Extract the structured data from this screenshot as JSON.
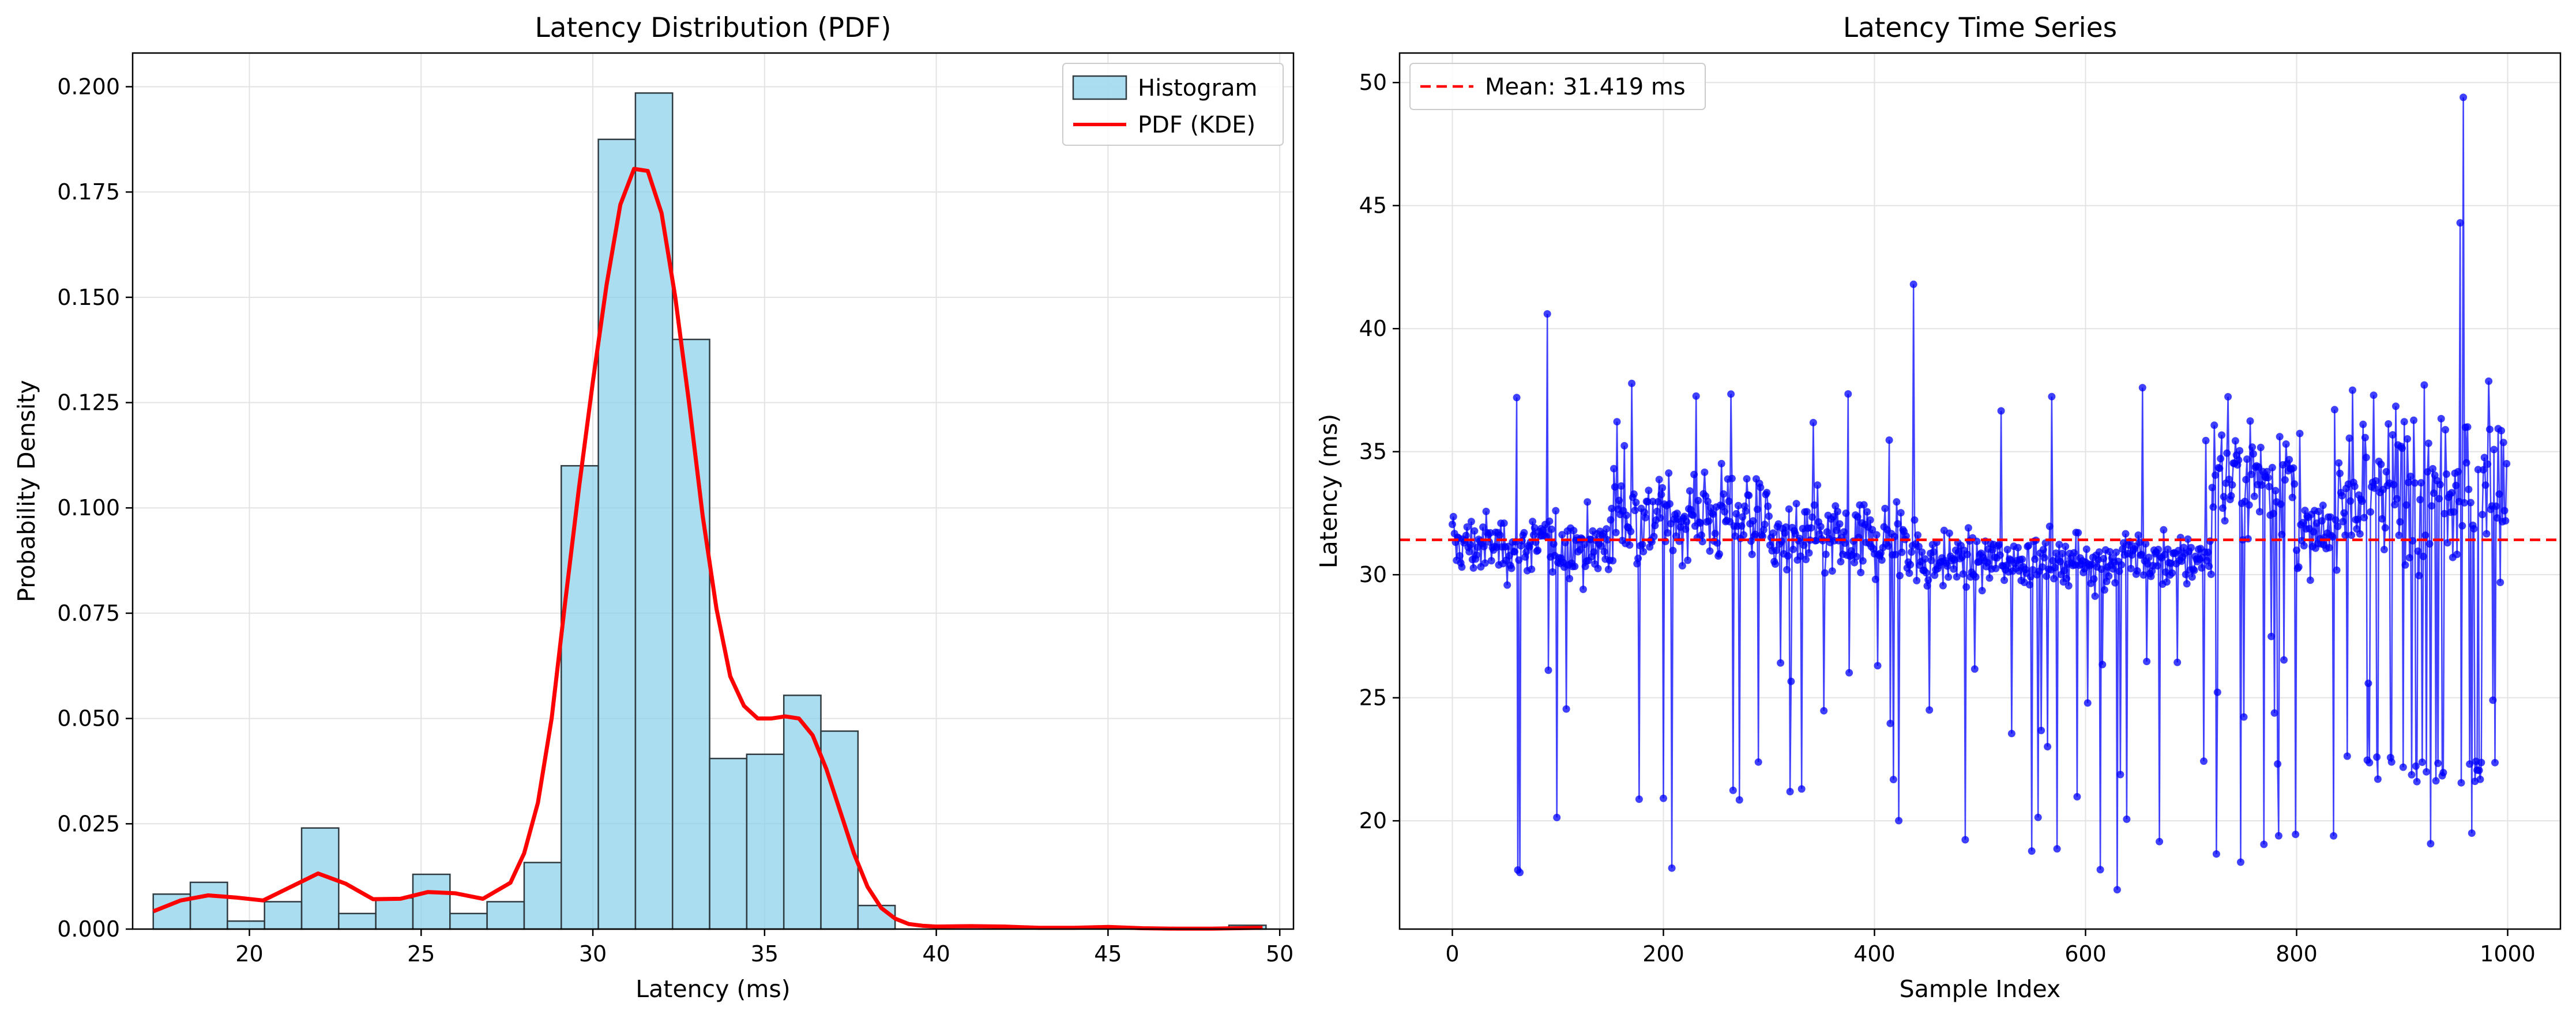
{
  "chart_data": [
    {
      "type": "bar",
      "title": "Latency Distribution (PDF)",
      "xlabel": "Latency (ms)",
      "ylabel": "Probability Density",
      "xlim": [
        16.6,
        50.4
      ],
      "ylim": [
        0,
        0.208
      ],
      "xticks": [
        20,
        25,
        30,
        35,
        40,
        45,
        50
      ],
      "yticks": [
        0.0,
        0.025,
        0.05,
        0.075,
        0.1,
        0.125,
        0.15,
        0.175,
        0.2
      ],
      "grid": true,
      "legend": {
        "position": "top-right",
        "entries": [
          "Histogram",
          "PDF (KDE)"
        ]
      },
      "histogram": {
        "name": "Histogram",
        "color": "#87CEEB",
        "edge_color": "#2f3b40",
        "bin_start": 17.2,
        "bin_width": 1.08,
        "values": [
          0.0083,
          0.0111,
          0.0019,
          0.0065,
          0.024,
          0.0037,
          0.0074,
          0.013,
          0.0037,
          0.0065,
          0.0158,
          0.11,
          0.1875,
          0.1985,
          0.14,
          0.0405,
          0.0415,
          0.0555,
          0.047,
          0.0056,
          0.0,
          0.0,
          0.0,
          0.0,
          0.0,
          0.0,
          0.0,
          0.0,
          0.0,
          0.0009
        ]
      },
      "kde": {
        "name": "PDF (KDE)",
        "color": "#ff0000",
        "x": [
          17.2,
          18.0,
          18.8,
          19.6,
          20.4,
          21.2,
          22.0,
          22.8,
          23.6,
          24.4,
          25.2,
          26.0,
          26.8,
          27.6,
          28.0,
          28.4,
          28.8,
          29.2,
          29.6,
          30.0,
          30.4,
          30.8,
          31.2,
          31.6,
          32.0,
          32.4,
          32.8,
          33.2,
          33.6,
          34.0,
          34.4,
          34.8,
          35.2,
          35.6,
          36.0,
          36.4,
          36.8,
          37.2,
          37.6,
          38.0,
          38.4,
          38.8,
          39.2,
          39.6,
          40.0,
          41.0,
          42.0,
          43.0,
          44.0,
          45.0,
          46.0,
          47.0,
          48.0,
          49.5
        ],
        "y": [
          0.0042,
          0.0068,
          0.008,
          0.0075,
          0.0068,
          0.01,
          0.0132,
          0.0108,
          0.0071,
          0.0072,
          0.0088,
          0.0085,
          0.0072,
          0.011,
          0.018,
          0.03,
          0.05,
          0.078,
          0.105,
          0.13,
          0.153,
          0.172,
          0.1805,
          0.18,
          0.17,
          0.15,
          0.125,
          0.098,
          0.076,
          0.06,
          0.053,
          0.05,
          0.05,
          0.0505,
          0.05,
          0.046,
          0.038,
          0.028,
          0.018,
          0.01,
          0.005,
          0.0025,
          0.0012,
          0.0008,
          0.0006,
          0.0007,
          0.0006,
          0.0003,
          0.0003,
          0.0005,
          0.0002,
          0.0001,
          0.0001,
          0.0003
        ]
      }
    },
    {
      "type": "line",
      "title": "Latency Time Series",
      "xlabel": "Sample Index",
      "ylabel": "Latency (ms)",
      "xlim": [
        -50,
        1050
      ],
      "ylim": [
        15.6,
        51.2
      ],
      "xticks": [
        0,
        200,
        400,
        600,
        800,
        1000
      ],
      "yticks": [
        20,
        25,
        30,
        35,
        40,
        45,
        50
      ],
      "grid": true,
      "legend": {
        "position": "top-left",
        "entries": [
          "Mean: 31.419 ms"
        ]
      },
      "series": [
        {
          "color": "#0000ff",
          "marker": "circle",
          "n_points": 1000
        }
      ],
      "mean_line": {
        "name": "Mean: 31.419 ms",
        "value": 31.419,
        "color": "#ff0000",
        "style": "dashed"
      },
      "notable_points": [
        {
          "x": 61,
          "y": 37.2
        },
        {
          "x": 62,
          "y": 18.0
        },
        {
          "x": 64,
          "y": 17.9
        },
        {
          "x": 90,
          "y": 40.6
        },
        {
          "x": 437,
          "y": 41.8
        },
        {
          "x": 630,
          "y": 17.2
        },
        {
          "x": 955,
          "y": 44.3
        },
        {
          "x": 958,
          "y": 49.4
        },
        {
          "x": 966,
          "y": 19.5
        },
        {
          "x": 986,
          "y": 24.9
        }
      ]
    }
  ]
}
